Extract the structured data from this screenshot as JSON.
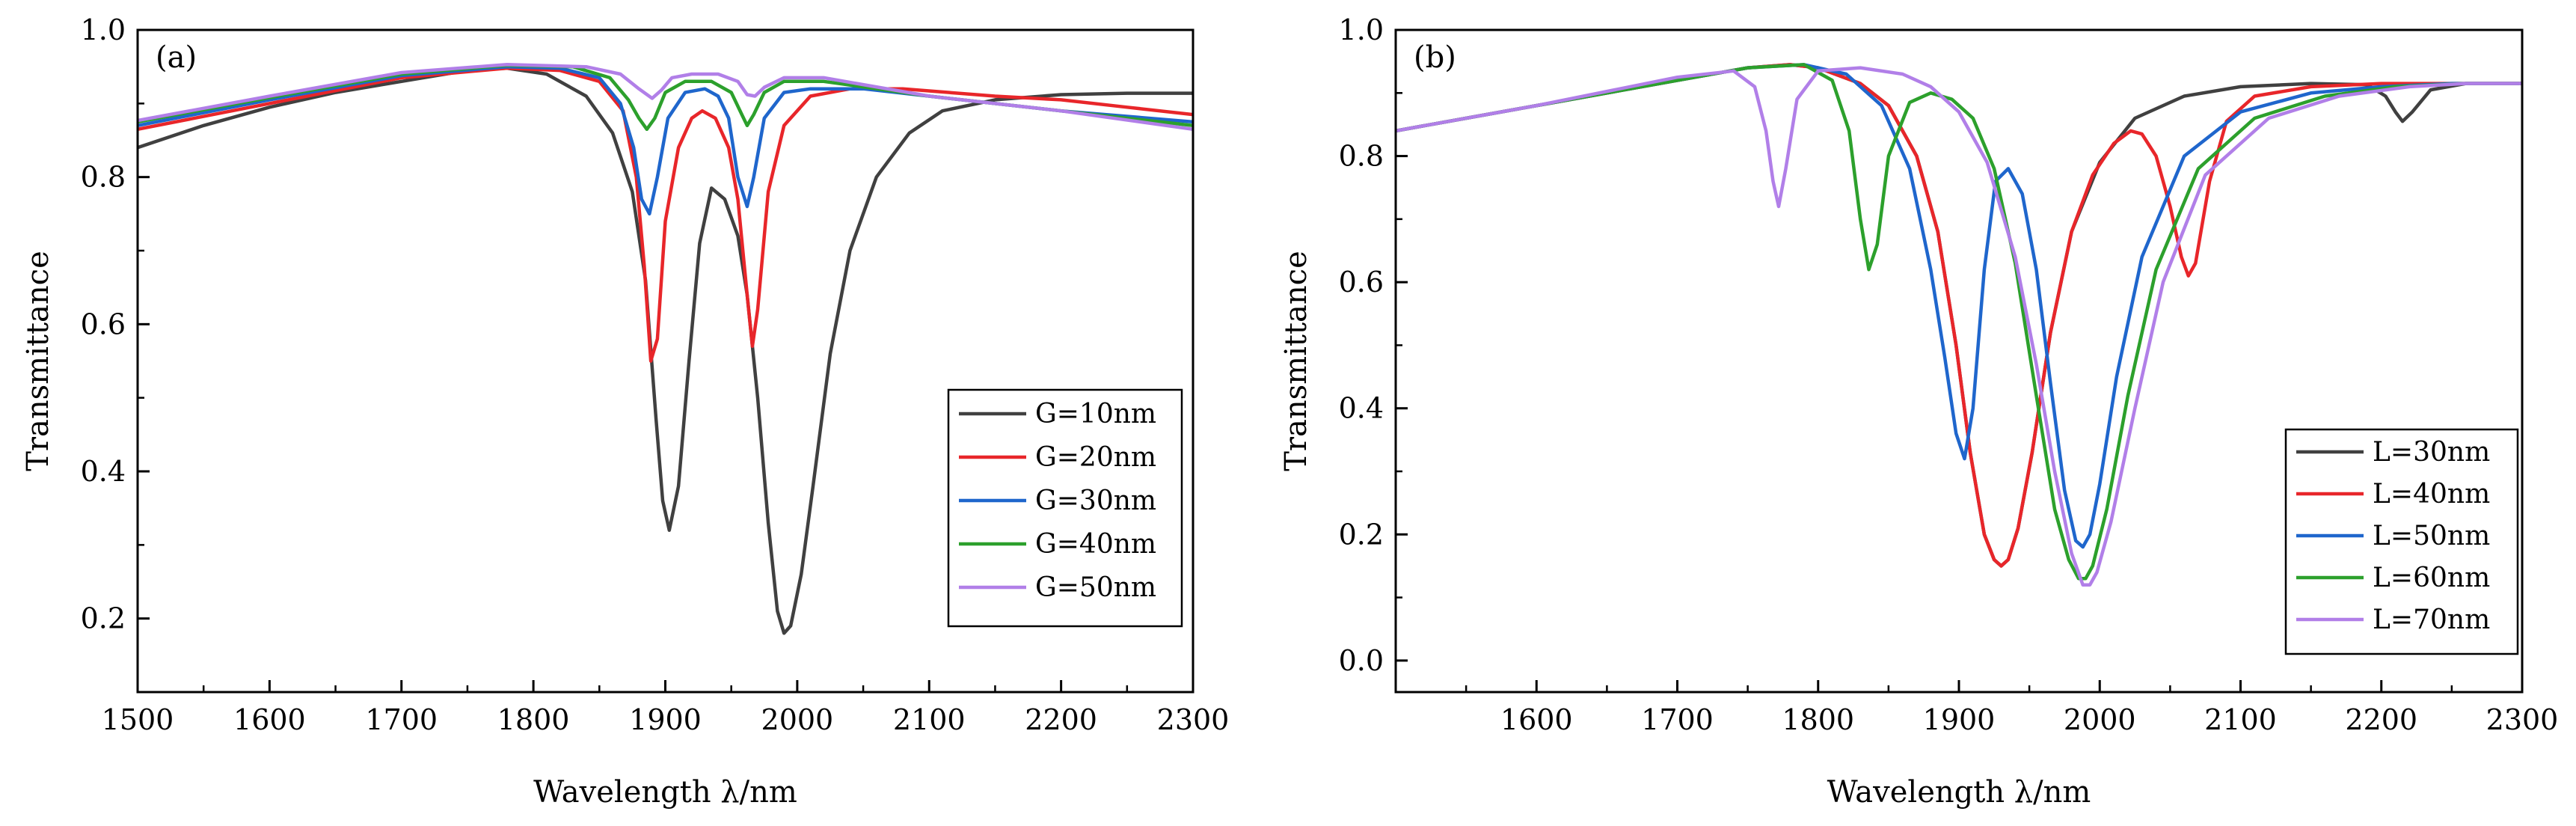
{
  "chart_data": [
    {
      "id": "a",
      "type": "line",
      "panel_label": "(a)",
      "xlabel": "Wavelength λ/nm",
      "ylabel": "Transmittance",
      "xlim": [
        1500,
        2300
      ],
      "ylim": [
        0.1,
        1.0
      ],
      "xticks": [
        1500,
        1600,
        1700,
        1800,
        1900,
        2000,
        2100,
        2200,
        2300
      ],
      "xtick_labels": [
        "1500",
        "1600",
        "1700",
        "1800",
        "1900",
        "2000",
        "2100",
        "2200",
        "2300"
      ],
      "yticks": [
        0.2,
        0.4,
        0.6,
        0.8,
        1.0
      ],
      "ytick_labels": [
        "0.2",
        "0.4",
        "0.6",
        "0.8",
        "1.0"
      ],
      "legend_position": "lower-right",
      "series": [
        {
          "name": "G=10nm",
          "color": "#404040",
          "x": [
            1500,
            1550,
            1600,
            1650,
            1700,
            1750,
            1780,
            1810,
            1840,
            1860,
            1875,
            1885,
            1893,
            1898,
            1903,
            1910,
            1918,
            1926,
            1935,
            1945,
            1955,
            1962,
            1970,
            1978,
            1985,
            1990,
            1995,
            2003,
            2012,
            2025,
            2040,
            2060,
            2085,
            2110,
            2150,
            2200,
            2250,
            2300
          ],
          "y": [
            0.84,
            0.87,
            0.895,
            0.915,
            0.93,
            0.945,
            0.948,
            0.94,
            0.91,
            0.86,
            0.78,
            0.66,
            0.47,
            0.36,
            0.32,
            0.38,
            0.55,
            0.71,
            0.785,
            0.77,
            0.72,
            0.64,
            0.5,
            0.33,
            0.21,
            0.18,
            0.19,
            0.26,
            0.38,
            0.56,
            0.7,
            0.8,
            0.86,
            0.89,
            0.905,
            0.912,
            0.914,
            0.914
          ]
        },
        {
          "name": "G=20nm",
          "color": "#e8262a",
          "x": [
            1500,
            1600,
            1700,
            1780,
            1820,
            1850,
            1868,
            1878,
            1884,
            1889,
            1894,
            1900,
            1910,
            1920,
            1928,
            1938,
            1948,
            1955,
            1962,
            1966,
            1970,
            1978,
            1990,
            2010,
            2040,
            2080,
            2150,
            2200,
            2250,
            2300
          ],
          "y": [
            0.865,
            0.9,
            0.935,
            0.948,
            0.945,
            0.93,
            0.89,
            0.8,
            0.68,
            0.55,
            0.58,
            0.74,
            0.84,
            0.88,
            0.89,
            0.88,
            0.84,
            0.77,
            0.64,
            0.57,
            0.62,
            0.78,
            0.87,
            0.91,
            0.92,
            0.92,
            0.91,
            0.905,
            0.895,
            0.885
          ]
        },
        {
          "name": "G=30nm",
          "color": "#1f66cc",
          "x": [
            1500,
            1600,
            1700,
            1780,
            1820,
            1850,
            1866,
            1876,
            1882,
            1888,
            1894,
            1902,
            1915,
            1930,
            1940,
            1948,
            1955,
            1962,
            1967,
            1975,
            1990,
            2010,
            2050,
            2100,
            2200,
            2300
          ],
          "y": [
            0.87,
            0.905,
            0.938,
            0.95,
            0.948,
            0.935,
            0.9,
            0.84,
            0.77,
            0.75,
            0.8,
            0.88,
            0.915,
            0.92,
            0.91,
            0.88,
            0.8,
            0.76,
            0.8,
            0.88,
            0.915,
            0.92,
            0.92,
            0.91,
            0.89,
            0.875
          ]
        },
        {
          "name": "G=40nm",
          "color": "#2ca02c",
          "x": [
            1500,
            1600,
            1700,
            1780,
            1830,
            1858,
            1872,
            1880,
            1886,
            1892,
            1900,
            1915,
            1935,
            1950,
            1958,
            1962,
            1967,
            1975,
            1990,
            2020,
            2100,
            2200,
            2300
          ],
          "y": [
            0.875,
            0.908,
            0.94,
            0.952,
            0.95,
            0.935,
            0.905,
            0.88,
            0.865,
            0.88,
            0.915,
            0.93,
            0.93,
            0.915,
            0.885,
            0.87,
            0.885,
            0.915,
            0.93,
            0.93,
            0.91,
            0.89,
            0.87
          ]
        },
        {
          "name": "G=50nm",
          "color": "#b17fe8",
          "x": [
            1500,
            1600,
            1700,
            1780,
            1840,
            1866,
            1880,
            1890,
            1897,
            1905,
            1920,
            1940,
            1955,
            1962,
            1968,
            1975,
            1990,
            2020,
            2100,
            2200,
            2300
          ],
          "y": [
            0.877,
            0.91,
            0.942,
            0.953,
            0.95,
            0.94,
            0.92,
            0.907,
            0.918,
            0.935,
            0.94,
            0.94,
            0.93,
            0.912,
            0.91,
            0.922,
            0.935,
            0.935,
            0.91,
            0.89,
            0.865
          ]
        }
      ]
    },
    {
      "id": "b",
      "type": "line",
      "panel_label": "(b)",
      "xlabel": "Wavelength λ/nm",
      "ylabel": "Transmittance",
      "xlim": [
        1500,
        2300
      ],
      "ylim": [
        -0.05,
        1.0
      ],
      "xticks": [
        1600,
        1700,
        1800,
        1900,
        2000,
        2100,
        2200,
        2300
      ],
      "xtick_labels": [
        "1600",
        "1700",
        "1800",
        "1900",
        "2000",
        "2100",
        "2200",
        "2300"
      ],
      "yticks": [
        0.0,
        0.2,
        0.4,
        0.6,
        0.8,
        1.0
      ],
      "ytick_labels": [
        "0.0",
        "0.2",
        "0.4",
        "0.6",
        "0.8",
        "1.0"
      ],
      "legend_position": "lower-right",
      "series": [
        {
          "name": "L=30nm",
          "color": "#404040",
          "x": [
            1500,
            1550,
            1600,
            1650,
            1700,
            1750,
            1780,
            1800,
            1830,
            1850,
            1870,
            1885,
            1898,
            1908,
            1918,
            1925,
            1930,
            1935,
            1942,
            1952,
            1965,
            1980,
            2000,
            2025,
            2060,
            2100,
            2150,
            2190,
            2203,
            2210,
            2215,
            2222,
            2235,
            2260,
            2300
          ],
          "y": [
            0.84,
            0.86,
            0.88,
            0.9,
            0.92,
            0.94,
            0.945,
            0.94,
            0.915,
            0.88,
            0.8,
            0.68,
            0.5,
            0.33,
            0.2,
            0.16,
            0.15,
            0.16,
            0.21,
            0.33,
            0.52,
            0.68,
            0.79,
            0.86,
            0.895,
            0.91,
            0.915,
            0.913,
            0.895,
            0.87,
            0.855,
            0.87,
            0.905,
            0.915,
            0.915
          ]
        },
        {
          "name": "L=40nm",
          "color": "#e8262a",
          "x": [
            1500,
            1600,
            1700,
            1750,
            1780,
            1800,
            1830,
            1850,
            1870,
            1885,
            1898,
            1908,
            1918,
            1925,
            1930,
            1935,
            1942,
            1952,
            1965,
            1980,
            1995,
            2010,
            2022,
            2030,
            2040,
            2050,
            2058,
            2063,
            2068,
            2078,
            2090,
            2110,
            2150,
            2200,
            2300
          ],
          "y": [
            0.84,
            0.88,
            0.92,
            0.94,
            0.945,
            0.94,
            0.915,
            0.88,
            0.8,
            0.68,
            0.5,
            0.33,
            0.2,
            0.16,
            0.15,
            0.16,
            0.21,
            0.33,
            0.52,
            0.68,
            0.77,
            0.82,
            0.84,
            0.835,
            0.8,
            0.72,
            0.64,
            0.61,
            0.63,
            0.76,
            0.855,
            0.895,
            0.91,
            0.915,
            0.915
          ]
        },
        {
          "name": "L=50nm",
          "color": "#1f66cc",
          "x": [
            1500,
            1600,
            1700,
            1750,
            1790,
            1820,
            1845,
            1865,
            1880,
            1890,
            1898,
            1904,
            1910,
            1918,
            1926,
            1935,
            1945,
            1955,
            1965,
            1975,
            1983,
            1988,
            1993,
            2000,
            2012,
            2030,
            2060,
            2100,
            2150,
            2200,
            2250,
            2300
          ],
          "y": [
            0.84,
            0.88,
            0.92,
            0.94,
            0.945,
            0.93,
            0.88,
            0.78,
            0.62,
            0.48,
            0.36,
            0.32,
            0.4,
            0.62,
            0.76,
            0.78,
            0.74,
            0.62,
            0.44,
            0.27,
            0.19,
            0.18,
            0.2,
            0.28,
            0.45,
            0.64,
            0.8,
            0.87,
            0.9,
            0.91,
            0.915,
            0.915
          ]
        },
        {
          "name": "L=60nm",
          "color": "#2ca02c",
          "x": [
            1500,
            1600,
            1700,
            1750,
            1790,
            1810,
            1822,
            1830,
            1836,
            1842,
            1850,
            1865,
            1880,
            1895,
            1910,
            1925,
            1940,
            1955,
            1968,
            1978,
            1985,
            1990,
            1995,
            2005,
            2020,
            2040,
            2070,
            2110,
            2160,
            2210,
            2260,
            2300
          ],
          "y": [
            0.84,
            0.88,
            0.92,
            0.94,
            0.945,
            0.92,
            0.84,
            0.7,
            0.62,
            0.66,
            0.8,
            0.885,
            0.9,
            0.89,
            0.86,
            0.78,
            0.63,
            0.42,
            0.24,
            0.16,
            0.13,
            0.13,
            0.15,
            0.24,
            0.42,
            0.62,
            0.78,
            0.86,
            0.895,
            0.91,
            0.915,
            0.915
          ]
        },
        {
          "name": "L=70nm",
          "color": "#b17fe8",
          "x": [
            1500,
            1600,
            1700,
            1740,
            1755,
            1763,
            1768,
            1772,
            1777,
            1785,
            1800,
            1830,
            1860,
            1880,
            1900,
            1920,
            1940,
            1955,
            1968,
            1980,
            1988,
            1993,
            1998,
            2008,
            2025,
            2045,
            2075,
            2120,
            2170,
            2220,
            2260,
            2300
          ],
          "y": [
            0.84,
            0.88,
            0.925,
            0.935,
            0.91,
            0.84,
            0.76,
            0.72,
            0.78,
            0.89,
            0.935,
            0.94,
            0.93,
            0.91,
            0.87,
            0.79,
            0.64,
            0.47,
            0.3,
            0.17,
            0.12,
            0.12,
            0.14,
            0.22,
            0.4,
            0.6,
            0.77,
            0.86,
            0.895,
            0.91,
            0.915,
            0.915
          ]
        }
      ]
    }
  ]
}
